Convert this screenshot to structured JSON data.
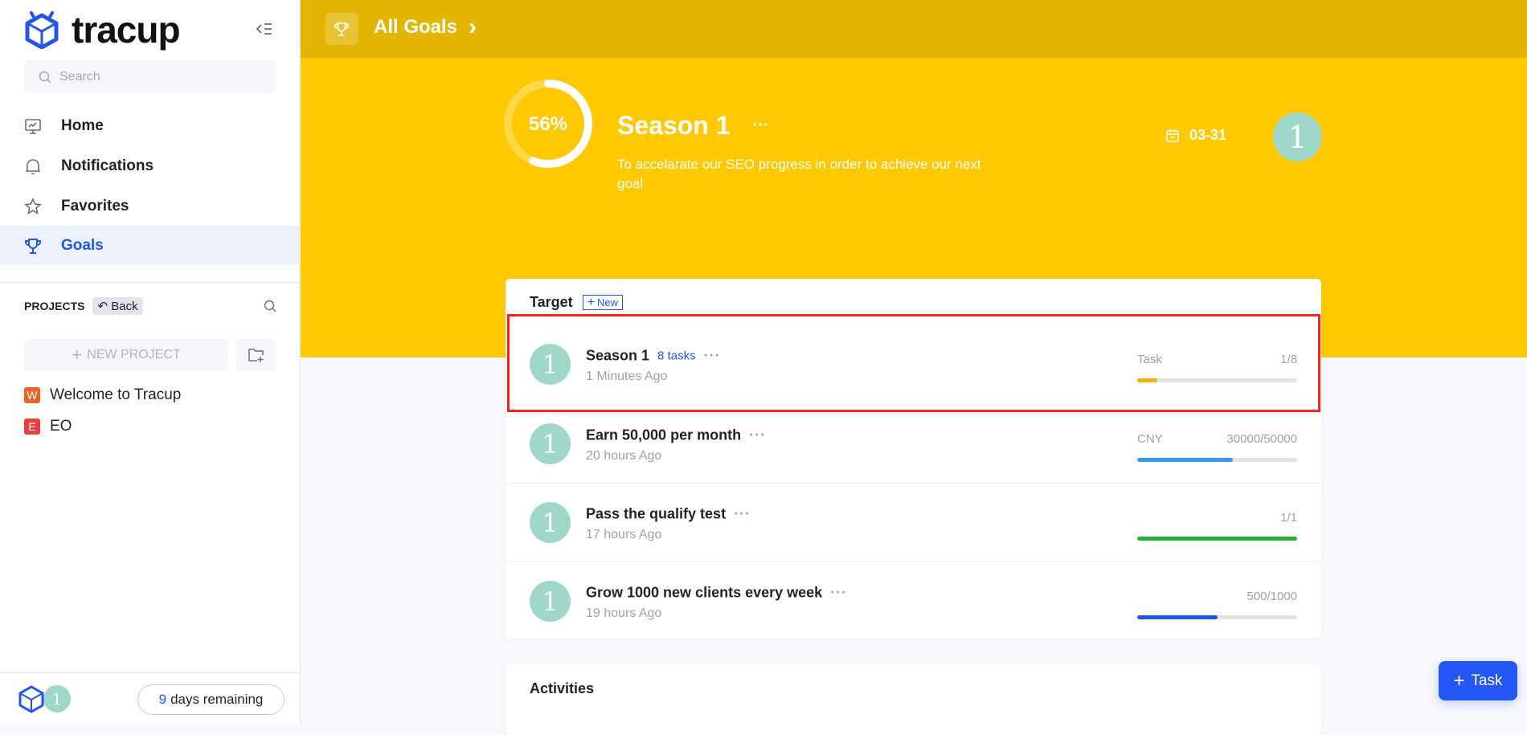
{
  "sidebar": {
    "logo_text": "tracup",
    "search_placeholder": "Search",
    "nav": [
      {
        "label": "Home",
        "icon": "monitor-icon"
      },
      {
        "label": "Notifications",
        "icon": "bell-icon"
      },
      {
        "label": "Favorites",
        "icon": "star-icon"
      },
      {
        "label": "Goals",
        "icon": "trophy-icon",
        "active": true
      }
    ],
    "projects_label": "PROJECTS",
    "back_label": "Back",
    "new_project_label": "NEW PROJECT",
    "projects": [
      {
        "badge": "W",
        "name": "Welcome to Tracup",
        "color": "#E8662A"
      },
      {
        "badge": "E",
        "name": "EO",
        "color": "#E5413F"
      }
    ],
    "user_avatar": "1",
    "trial_days": "9",
    "trial_suffix": "days remaining"
  },
  "header": {
    "breadcrumb": "All Goals",
    "chevron": "›"
  },
  "goal": {
    "progress_label": "56%",
    "progress": 0.56,
    "title": "Season 1",
    "more": "···",
    "description": "To accelarate our SEO progress in order to achieve our next goal",
    "due": "03-31",
    "owner_avatar": "1"
  },
  "target": {
    "title": "Target",
    "new_label": "New",
    "rows": [
      {
        "avatar": "1",
        "title": "Season 1",
        "tasks": "8 tasks",
        "time": "1 Minutes Ago",
        "label": "Task",
        "value": "1/8",
        "progress": 0.125,
        "color": "#F5B300",
        "highlighted": true
      },
      {
        "avatar": "1",
        "title": "Earn 50,000 per month",
        "tasks": "",
        "time": "20 hours Ago",
        "label": "CNY",
        "value": "30000/50000",
        "progress": 0.6,
        "color": "#3399F3"
      },
      {
        "avatar": "1",
        "title": "Pass the qualify test",
        "tasks": "",
        "time": "17 hours Ago",
        "label": "",
        "value": "1/1",
        "progress": 1,
        "color": "#24B12B"
      },
      {
        "avatar": "1",
        "title": "Grow 1000 new clients every week",
        "tasks": "",
        "time": "19 hours Ago",
        "label": "",
        "value": "500/1000",
        "progress": 0.5,
        "color": "#2155E8"
      }
    ]
  },
  "activities": {
    "title": "Activities"
  },
  "fab": {
    "label": "Task"
  },
  "colors": {
    "accent": "#2356E8",
    "header": "#E3B500",
    "hero": "#FFC800",
    "highlight": "#FF1F1F"
  }
}
